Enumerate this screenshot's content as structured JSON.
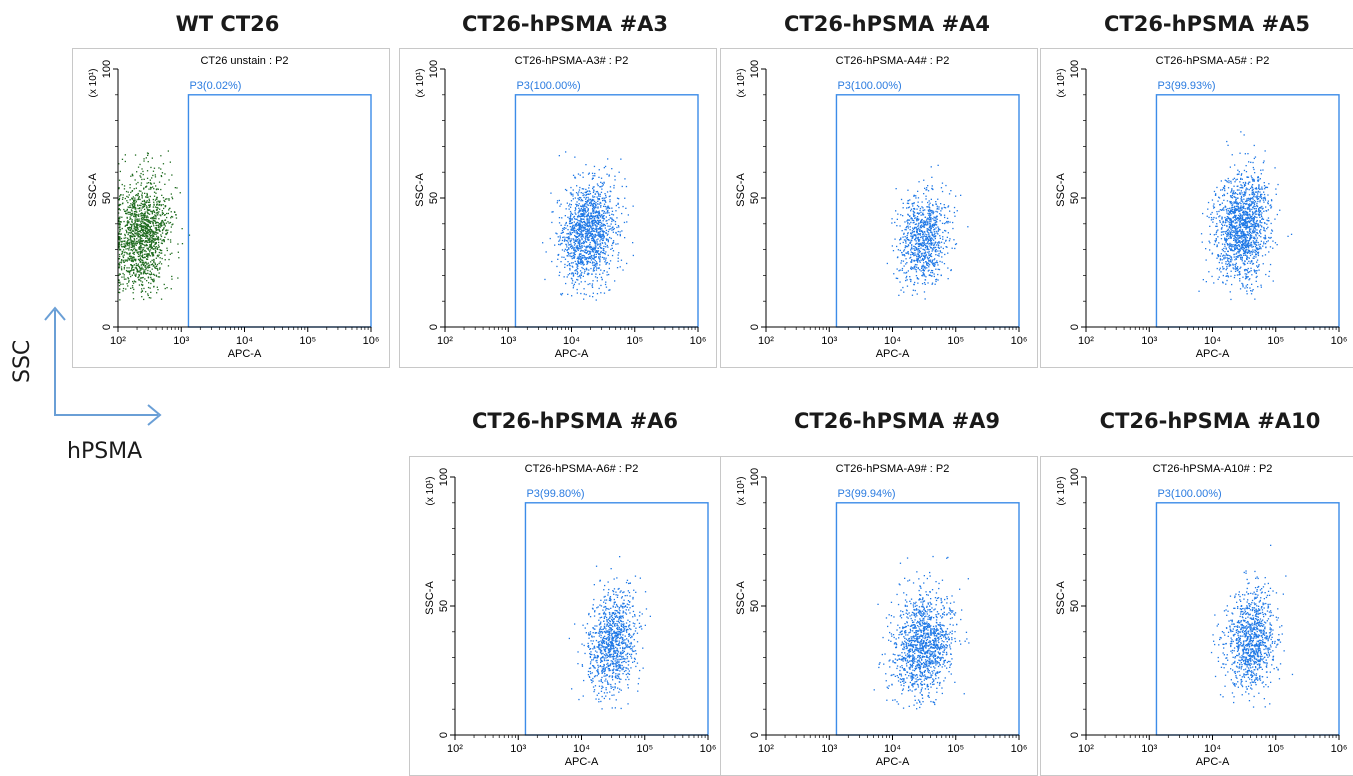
{
  "axis_indicator": {
    "y_label": "SSC",
    "x_label": "hPSMA",
    "color": "#6a9fd6"
  },
  "chart_data": [
    {
      "type": "scatter",
      "header": "WT CT26",
      "plot_title": "CT26 unstain : P2",
      "gate": "P3(0.02%)",
      "xlabel": "APC-A",
      "ylabel": "SSC-A",
      "y_multiplier": "(x 10¹)",
      "xlim": [
        100,
        1000000
      ],
      "ylim": [
        0,
        100
      ],
      "x_scale": "log",
      "x_tick_labels": [
        "10²",
        "10³",
        "10⁴",
        "10⁵",
        "10⁶"
      ],
      "y_tick_labels": [
        "0",
        "50",
        "100"
      ],
      "gate_x": [
        1300,
        1000000
      ],
      "gate_y": [
        0,
        90
      ],
      "point_color": "#1f6b1f",
      "population": {
        "x_center": 230,
        "x_spread": 0.22,
        "y_center": 36,
        "y_spread": 11,
        "n": 1500,
        "clip_left": 100
      }
    },
    {
      "type": "scatter",
      "header": "CT26-hPSMA #A3",
      "plot_title": "CT26-hPSMA-A3# : P2",
      "gate": "P3(100.00%)",
      "xlabel": "APC-A",
      "ylabel": "SSC-A",
      "y_multiplier": "(x 10¹)",
      "xlim": [
        100,
        1000000
      ],
      "ylim": [
        0,
        100
      ],
      "x_scale": "log",
      "x_tick_labels": [
        "10²",
        "10³",
        "10⁴",
        "10⁵",
        "10⁶"
      ],
      "y_tick_labels": [
        "0",
        "50",
        "100"
      ],
      "gate_x": [
        1300,
        1000000
      ],
      "gate_y": [
        0,
        90
      ],
      "point_color": "#1e78e6",
      "population": {
        "x_center": 18000,
        "x_spread": 0.22,
        "y_center": 37,
        "y_spread": 10,
        "n": 1400
      }
    },
    {
      "type": "scatter",
      "header": "CT26-hPSMA #A4",
      "plot_title": "CT26-hPSMA-A4# : P2",
      "gate": "P3(100.00%)",
      "xlabel": "APC-A",
      "ylabel": "SSC-A",
      "y_multiplier": "(x 10¹)",
      "xlim": [
        100,
        1000000
      ],
      "ylim": [
        0,
        100
      ],
      "x_scale": "log",
      "x_tick_labels": [
        "10²",
        "10³",
        "10⁴",
        "10⁵",
        "10⁶"
      ],
      "y_tick_labels": [
        "0",
        "50",
        "100"
      ],
      "gate_x": [
        1300,
        1000000
      ],
      "gate_y": [
        0,
        90
      ],
      "point_color": "#1e78e6",
      "population": {
        "x_center": 30000,
        "x_spread": 0.2,
        "y_center": 35,
        "y_spread": 9,
        "n": 900
      }
    },
    {
      "type": "scatter",
      "header": "CT26-hPSMA #A5",
      "plot_title": "CT26-hPSMA-A5# : P2",
      "gate": "P3(99.93%)",
      "xlabel": "APC-A",
      "ylabel": "SSC-A",
      "y_multiplier": "(x 10¹)",
      "xlim": [
        100,
        1000000
      ],
      "ylim": [
        0,
        100
      ],
      "x_scale": "log",
      "x_tick_labels": [
        "10²",
        "10³",
        "10⁴",
        "10⁵",
        "10⁶"
      ],
      "y_tick_labels": [
        "0",
        "50",
        "100"
      ],
      "gate_x": [
        1300,
        1000000
      ],
      "gate_y": [
        0,
        90
      ],
      "point_color": "#1e78e6",
      "population": {
        "x_center": 30000,
        "x_spread": 0.22,
        "y_center": 39,
        "y_spread": 11,
        "n": 1500
      }
    },
    {
      "type": "scatter",
      "header": "CT26-hPSMA #A6",
      "plot_title": "CT26-hPSMA-A6# : P2",
      "gate": "P3(99.80%)",
      "xlabel": "APC-A",
      "ylabel": "SSC-A",
      "y_multiplier": "(x 10¹)",
      "xlim": [
        100,
        1000000
      ],
      "ylim": [
        0,
        100
      ],
      "x_scale": "log",
      "x_tick_labels": [
        "10²",
        "10³",
        "10⁴",
        "10⁵",
        "10⁶"
      ],
      "y_tick_labels": [
        "0",
        "50",
        "100"
      ],
      "gate_x": [
        1300,
        1000000
      ],
      "gate_y": [
        0,
        90
      ],
      "point_color": "#1e78e6",
      "population": {
        "x_center": 30000,
        "x_spread": 0.2,
        "y_center": 36,
        "y_spread": 10,
        "n": 1000
      }
    },
    {
      "type": "scatter",
      "header": "CT26-hPSMA #A9",
      "plot_title": "CT26-hPSMA-A9# : P2",
      "gate": "P3(99.94%)",
      "xlabel": "APC-A",
      "ylabel": "SSC-A",
      "y_multiplier": "(x 10¹)",
      "xlim": [
        100,
        1000000
      ],
      "ylim": [
        0,
        100
      ],
      "x_scale": "log",
      "x_tick_labels": [
        "10²",
        "10³",
        "10⁴",
        "10⁵",
        "10⁶"
      ],
      "y_tick_labels": [
        "0",
        "50",
        "100"
      ],
      "gate_x": [
        1300,
        1000000
      ],
      "gate_y": [
        0,
        90
      ],
      "point_color": "#1e78e6",
      "population": {
        "x_center": 30000,
        "x_spread": 0.24,
        "y_center": 35,
        "y_spread": 10,
        "n": 1300
      }
    },
    {
      "type": "scatter",
      "header": "CT26-hPSMA #A10",
      "plot_title": "CT26-hPSMA-A10# : P2",
      "gate": "P3(100.00%)",
      "xlabel": "APC-A",
      "ylabel": "SSC-A",
      "y_multiplier": "(x 10¹)",
      "xlim": [
        100,
        1000000
      ],
      "ylim": [
        0,
        100
      ],
      "x_scale": "log",
      "x_tick_labels": [
        "10²",
        "10³",
        "10⁴",
        "10⁵",
        "10⁶"
      ],
      "y_tick_labels": [
        "0",
        "50",
        "100"
      ],
      "gate_x": [
        1300,
        1000000
      ],
      "gate_y": [
        0,
        90
      ],
      "point_color": "#1e78e6",
      "population": {
        "x_center": 40000,
        "x_spread": 0.2,
        "y_center": 37,
        "y_spread": 10,
        "n": 1000
      }
    }
  ]
}
